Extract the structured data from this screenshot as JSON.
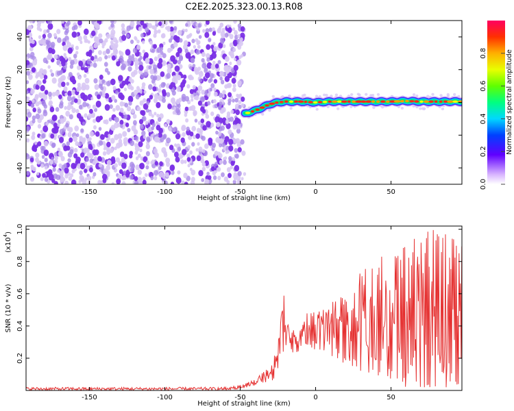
{
  "title": "C2E2.2025.323.00.13.R08",
  "colors": {
    "dots_faint": "#d8c8f4",
    "dots_mid": "#a98ae8",
    "dots_strong": "#7a2fe6",
    "line": "#e53131",
    "axis": "#000000"
  },
  "chart_data": [
    {
      "type": "heatmap",
      "name": "spectrogram",
      "xlabel": "Height of straight line (km)",
      "ylabel": "Frequency (Hz)",
      "xlim": [
        -192,
        97
      ],
      "ylim": [
        -50,
        50
      ],
      "xticks": [
        -150,
        -100,
        -50,
        0,
        50
      ],
      "xtick_labels": [
        "-150",
        "-100",
        "-50",
        "0",
        "50"
      ],
      "yticks": [
        -40,
        -20,
        0,
        20,
        40
      ],
      "ytick_labels": [
        "-40",
        "-20",
        "0",
        "20",
        "40"
      ],
      "noise_region_x": [
        -192,
        -47
      ],
      "signal_track": {
        "x": [
          -47,
          -40,
          -35,
          -30,
          -25,
          -20,
          -10,
          0,
          10,
          20,
          30,
          40,
          50,
          60,
          70,
          80,
          90,
          97
        ],
        "y": [
          -7,
          -5,
          -3,
          -1,
          0,
          0.5,
          0.5,
          0,
          0.5,
          0.5,
          0.5,
          0.5,
          0.5,
          0.8,
          0.5,
          0.5,
          0.5,
          0.5
        ]
      },
      "colorbar": {
        "label": "Normalized spectral amplitude",
        "range": [
          0.0,
          1.0
        ],
        "ticks": [
          0.0,
          0.2,
          0.4,
          0.6,
          0.8
        ],
        "tick_labels": [
          "0.0",
          "0.2",
          "0.4",
          "0.6",
          "0.8"
        ]
      }
    },
    {
      "type": "line",
      "name": "snr",
      "xlabel": "Height of straight line (km)",
      "ylabel": "SNR (10 * v/v)",
      "ylabel_multiplier": "(x10",
      "ylabel_exponent": "4",
      "ylabel_close": ")",
      "xlim": [
        -192,
        97
      ],
      "ylim": [
        0,
        1.02
      ],
      "xticks": [
        -150,
        -100,
        -50,
        0,
        50
      ],
      "xtick_labels": [
        "-150",
        "-100",
        "-50",
        "0",
        "50"
      ],
      "yticks": [
        0.2,
        0.4,
        0.6,
        0.8,
        1.0
      ],
      "ytick_labels": [
        "0.2",
        "0.4",
        "0.6",
        "0.8",
        "1.0"
      ],
      "series": [
        {
          "name": "SNR",
          "envelope_x": [
            -192,
            -60,
            -50,
            -40,
            -30,
            -25,
            -22,
            -20,
            -19,
            -15,
            -10,
            -5,
            0,
            5,
            10,
            15,
            20,
            25,
            30,
            40,
            50,
            60,
            70,
            80,
            90,
            97
          ],
          "envelope_min": [
            0.0,
            0.0,
            0.01,
            0.03,
            0.05,
            0.1,
            0.15,
            0.2,
            0.3,
            0.22,
            0.25,
            0.28,
            0.25,
            0.22,
            0.2,
            0.2,
            0.15,
            0.15,
            0.12,
            0.1,
            0.05,
            0.02,
            0.02,
            0.02,
            0.02,
            0.05
          ],
          "envelope_max": [
            0.02,
            0.02,
            0.03,
            0.07,
            0.15,
            0.28,
            0.58,
            0.62,
            0.42,
            0.38,
            0.38,
            0.5,
            0.48,
            0.5,
            0.55,
            0.6,
            0.58,
            0.7,
            0.78,
            0.82,
            0.85,
            0.9,
            0.98,
            1.0,
            0.95,
            0.9
          ]
        }
      ]
    }
  ]
}
